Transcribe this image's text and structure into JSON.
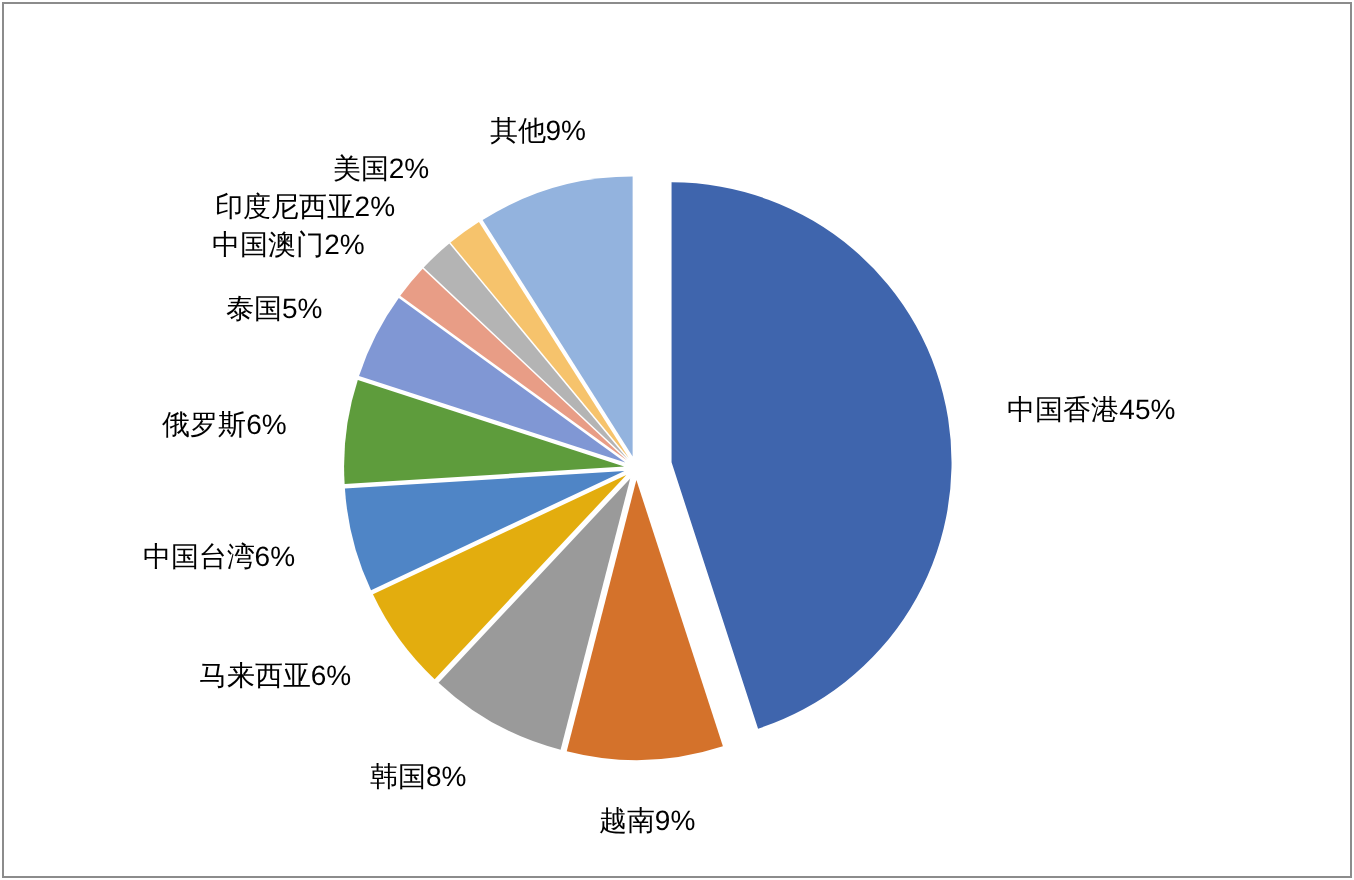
{
  "chart_data": {
    "type": "pie",
    "categories": [
      "中国香港",
      "越南",
      "韩国",
      "马来西亚",
      "中国台湾",
      "俄罗斯",
      "泰国",
      "中国澳门",
      "印度尼西亚",
      "美国",
      "其他"
    ],
    "values": [
      45,
      9,
      8,
      6,
      6,
      6,
      5,
      2,
      2,
      2,
      9
    ],
    "value_labels": [
      "45%",
      "9%",
      "8%",
      "6%",
      "6%",
      "6%",
      "5%",
      "2%",
      "2%",
      "2%",
      "9%"
    ],
    "colors": [
      "#3f65ad",
      "#d4722b",
      "#9a9a9a",
      "#e3ad0e",
      "#4f85c6",
      "#5e9c3c",
      "#8097d4",
      "#e89d86",
      "#b4b4b4",
      "#f6c36c",
      "#93b3de"
    ]
  }
}
